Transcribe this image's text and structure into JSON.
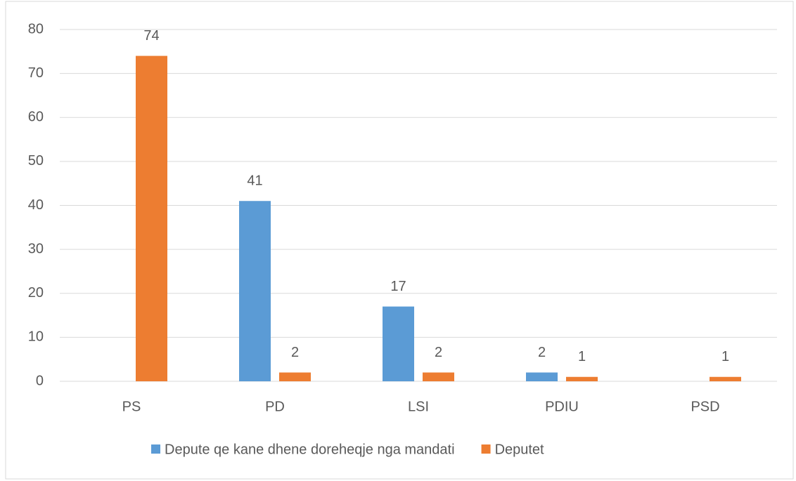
{
  "chart_data": {
    "type": "bar",
    "categories": [
      "PS",
      "PD",
      "LSI",
      "PDIU",
      "PSD"
    ],
    "series": [
      {
        "name": "Depute qe kane dhene doreheqje nga mandati",
        "color": "#5b9bd5",
        "values": [
          null,
          41,
          17,
          2,
          null
        ]
      },
      {
        "name": "Deputet",
        "color": "#ed7d31",
        "values": [
          74,
          2,
          2,
          1,
          1
        ]
      }
    ],
    "ylim": [
      0,
      80
    ],
    "yticks": [
      0,
      10,
      20,
      30,
      40,
      50,
      60,
      70,
      80
    ],
    "grid": true,
    "legend": "bottom"
  }
}
